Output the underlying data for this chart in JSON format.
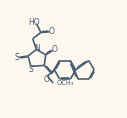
{
  "bg_color": "#fdf8ee",
  "bond_color": "#4a5c70",
  "atom_color": "#4a5c70",
  "line_width": 1.2,
  "figsize": [
    1.27,
    1.18
  ],
  "dpi": 100,
  "xlim": [
    0,
    10
  ],
  "ylim": [
    0,
    9
  ]
}
